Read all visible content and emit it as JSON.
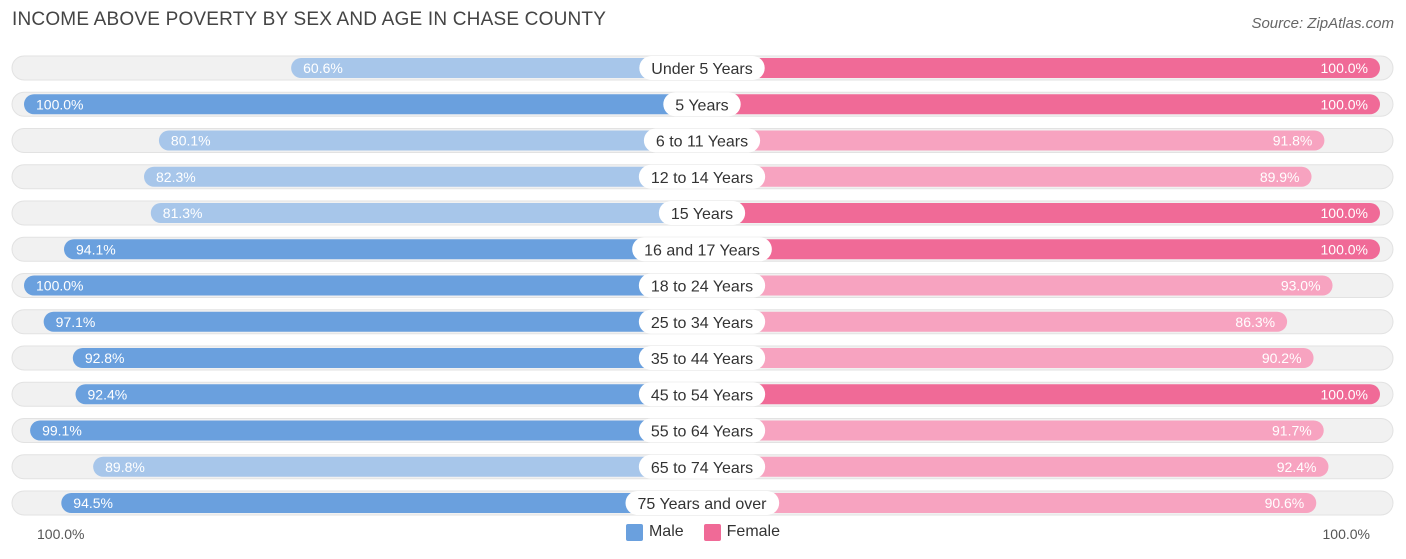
{
  "title": "INCOME ABOVE POVERTY BY SEX AND AGE IN CHASE COUNTY",
  "source": "Source: ZipAtlas.com",
  "colors": {
    "male_strong": "#6aa0de",
    "male_light": "#a7c6ea",
    "female_strong": "#f06a97",
    "female_light": "#f7a3c0",
    "track": "#f1f1f1"
  },
  "chart_data": {
    "type": "bar",
    "orientation": "horizontal-diverging",
    "title": "INCOME ABOVE POVERTY BY SEX AND AGE IN CHASE COUNTY",
    "categories": [
      "Under 5 Years",
      "5 Years",
      "6 to 11 Years",
      "12 to 14 Years",
      "15 Years",
      "16 and 17 Years",
      "18 to 24 Years",
      "25 to 34 Years",
      "35 to 44 Years",
      "45 to 54 Years",
      "55 to 64 Years",
      "65 to 74 Years",
      "75 Years and over"
    ],
    "series": [
      {
        "name": "Male",
        "values": [
          60.6,
          100.0,
          80.1,
          82.3,
          81.3,
          94.1,
          100.0,
          97.1,
          92.8,
          92.4,
          99.1,
          89.8,
          94.5
        ]
      },
      {
        "name": "Female",
        "values": [
          100.0,
          100.0,
          91.8,
          89.9,
          100.0,
          100.0,
          93.0,
          86.3,
          90.2,
          100.0,
          91.7,
          92.4,
          90.6
        ]
      }
    ],
    "labels": {
      "Male": [
        "60.6%",
        "100.0%",
        "80.1%",
        "82.3%",
        "81.3%",
        "94.1%",
        "100.0%",
        "97.1%",
        "92.8%",
        "92.4%",
        "99.1%",
        "89.8%",
        "94.5%"
      ],
      "Female": [
        "100.0%",
        "100.0%",
        "91.8%",
        "89.9%",
        "100.0%",
        "100.0%",
        "93.0%",
        "86.3%",
        "90.2%",
        "100.0%",
        "91.7%",
        "92.4%",
        "90.6%"
      ]
    },
    "xlim": [
      0,
      100
    ],
    "axis_left_label": "100.0%",
    "axis_right_label": "100.0%",
    "legend": [
      "Male",
      "Female"
    ],
    "legend_position": "bottom-center"
  }
}
